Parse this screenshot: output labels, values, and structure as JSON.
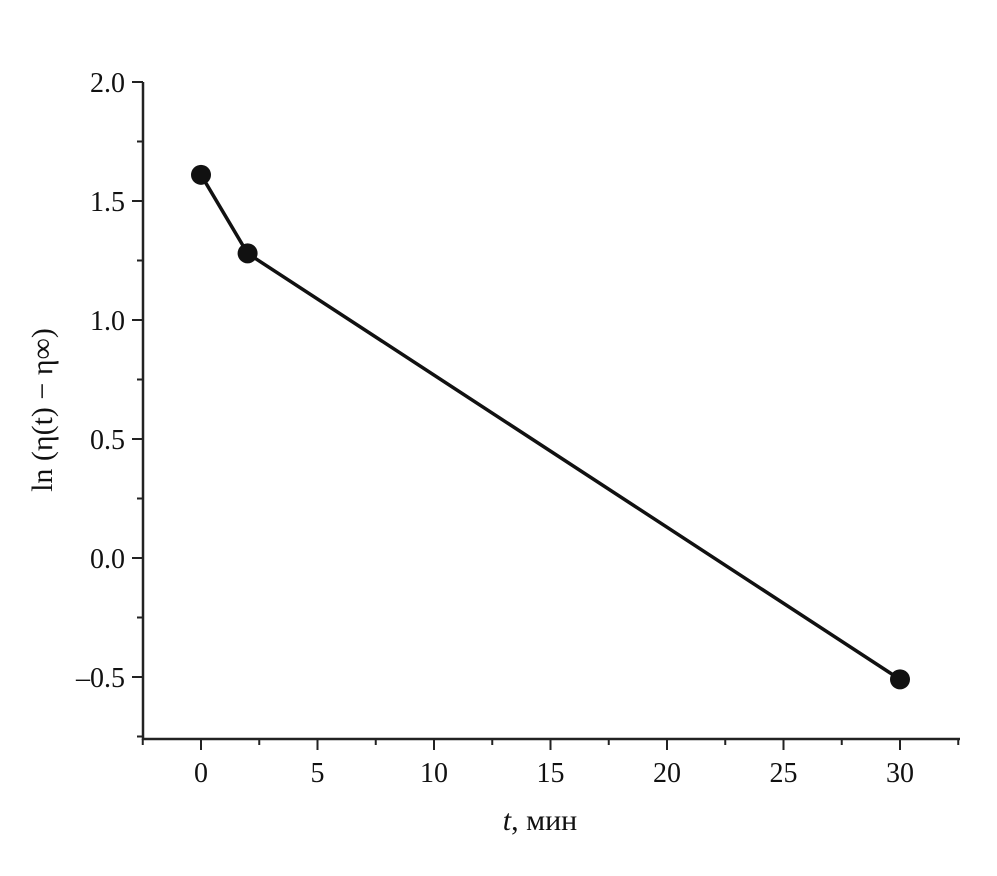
{
  "chart_data": {
    "type": "line",
    "title": "",
    "xlabel_italic": "t",
    "xlabel_rest": ", мин",
    "ylabel": "ln (η(t) − η∞)",
    "ylabel_parts": {
      "pre": "ln (η(",
      "t": "t",
      "mid": ") − η",
      "sub": "∞",
      "post": ")"
    },
    "xlim": [
      -2.5,
      32.6
    ],
    "ylim": [
      -0.765,
      2.0
    ],
    "xticks": [
      0,
      5,
      10,
      15,
      20,
      25,
      30
    ],
    "xtick_labels": [
      "0",
      "5",
      "10",
      "15",
      "20",
      "25",
      "30"
    ],
    "yticks": [
      2.0,
      1.5,
      1.0,
      0.5,
      0.0,
      -0.5
    ],
    "ytick_labels": [
      "2.0",
      "1.5",
      "1.0",
      "0.5",
      "0.0",
      "–0.5"
    ],
    "grid": false,
    "series": [
      {
        "name": "data",
        "color": "#111111",
        "marker": "circle",
        "x": [
          0,
          2,
          30
        ],
        "y": [
          1.61,
          1.28,
          -0.51
        ]
      }
    ]
  }
}
